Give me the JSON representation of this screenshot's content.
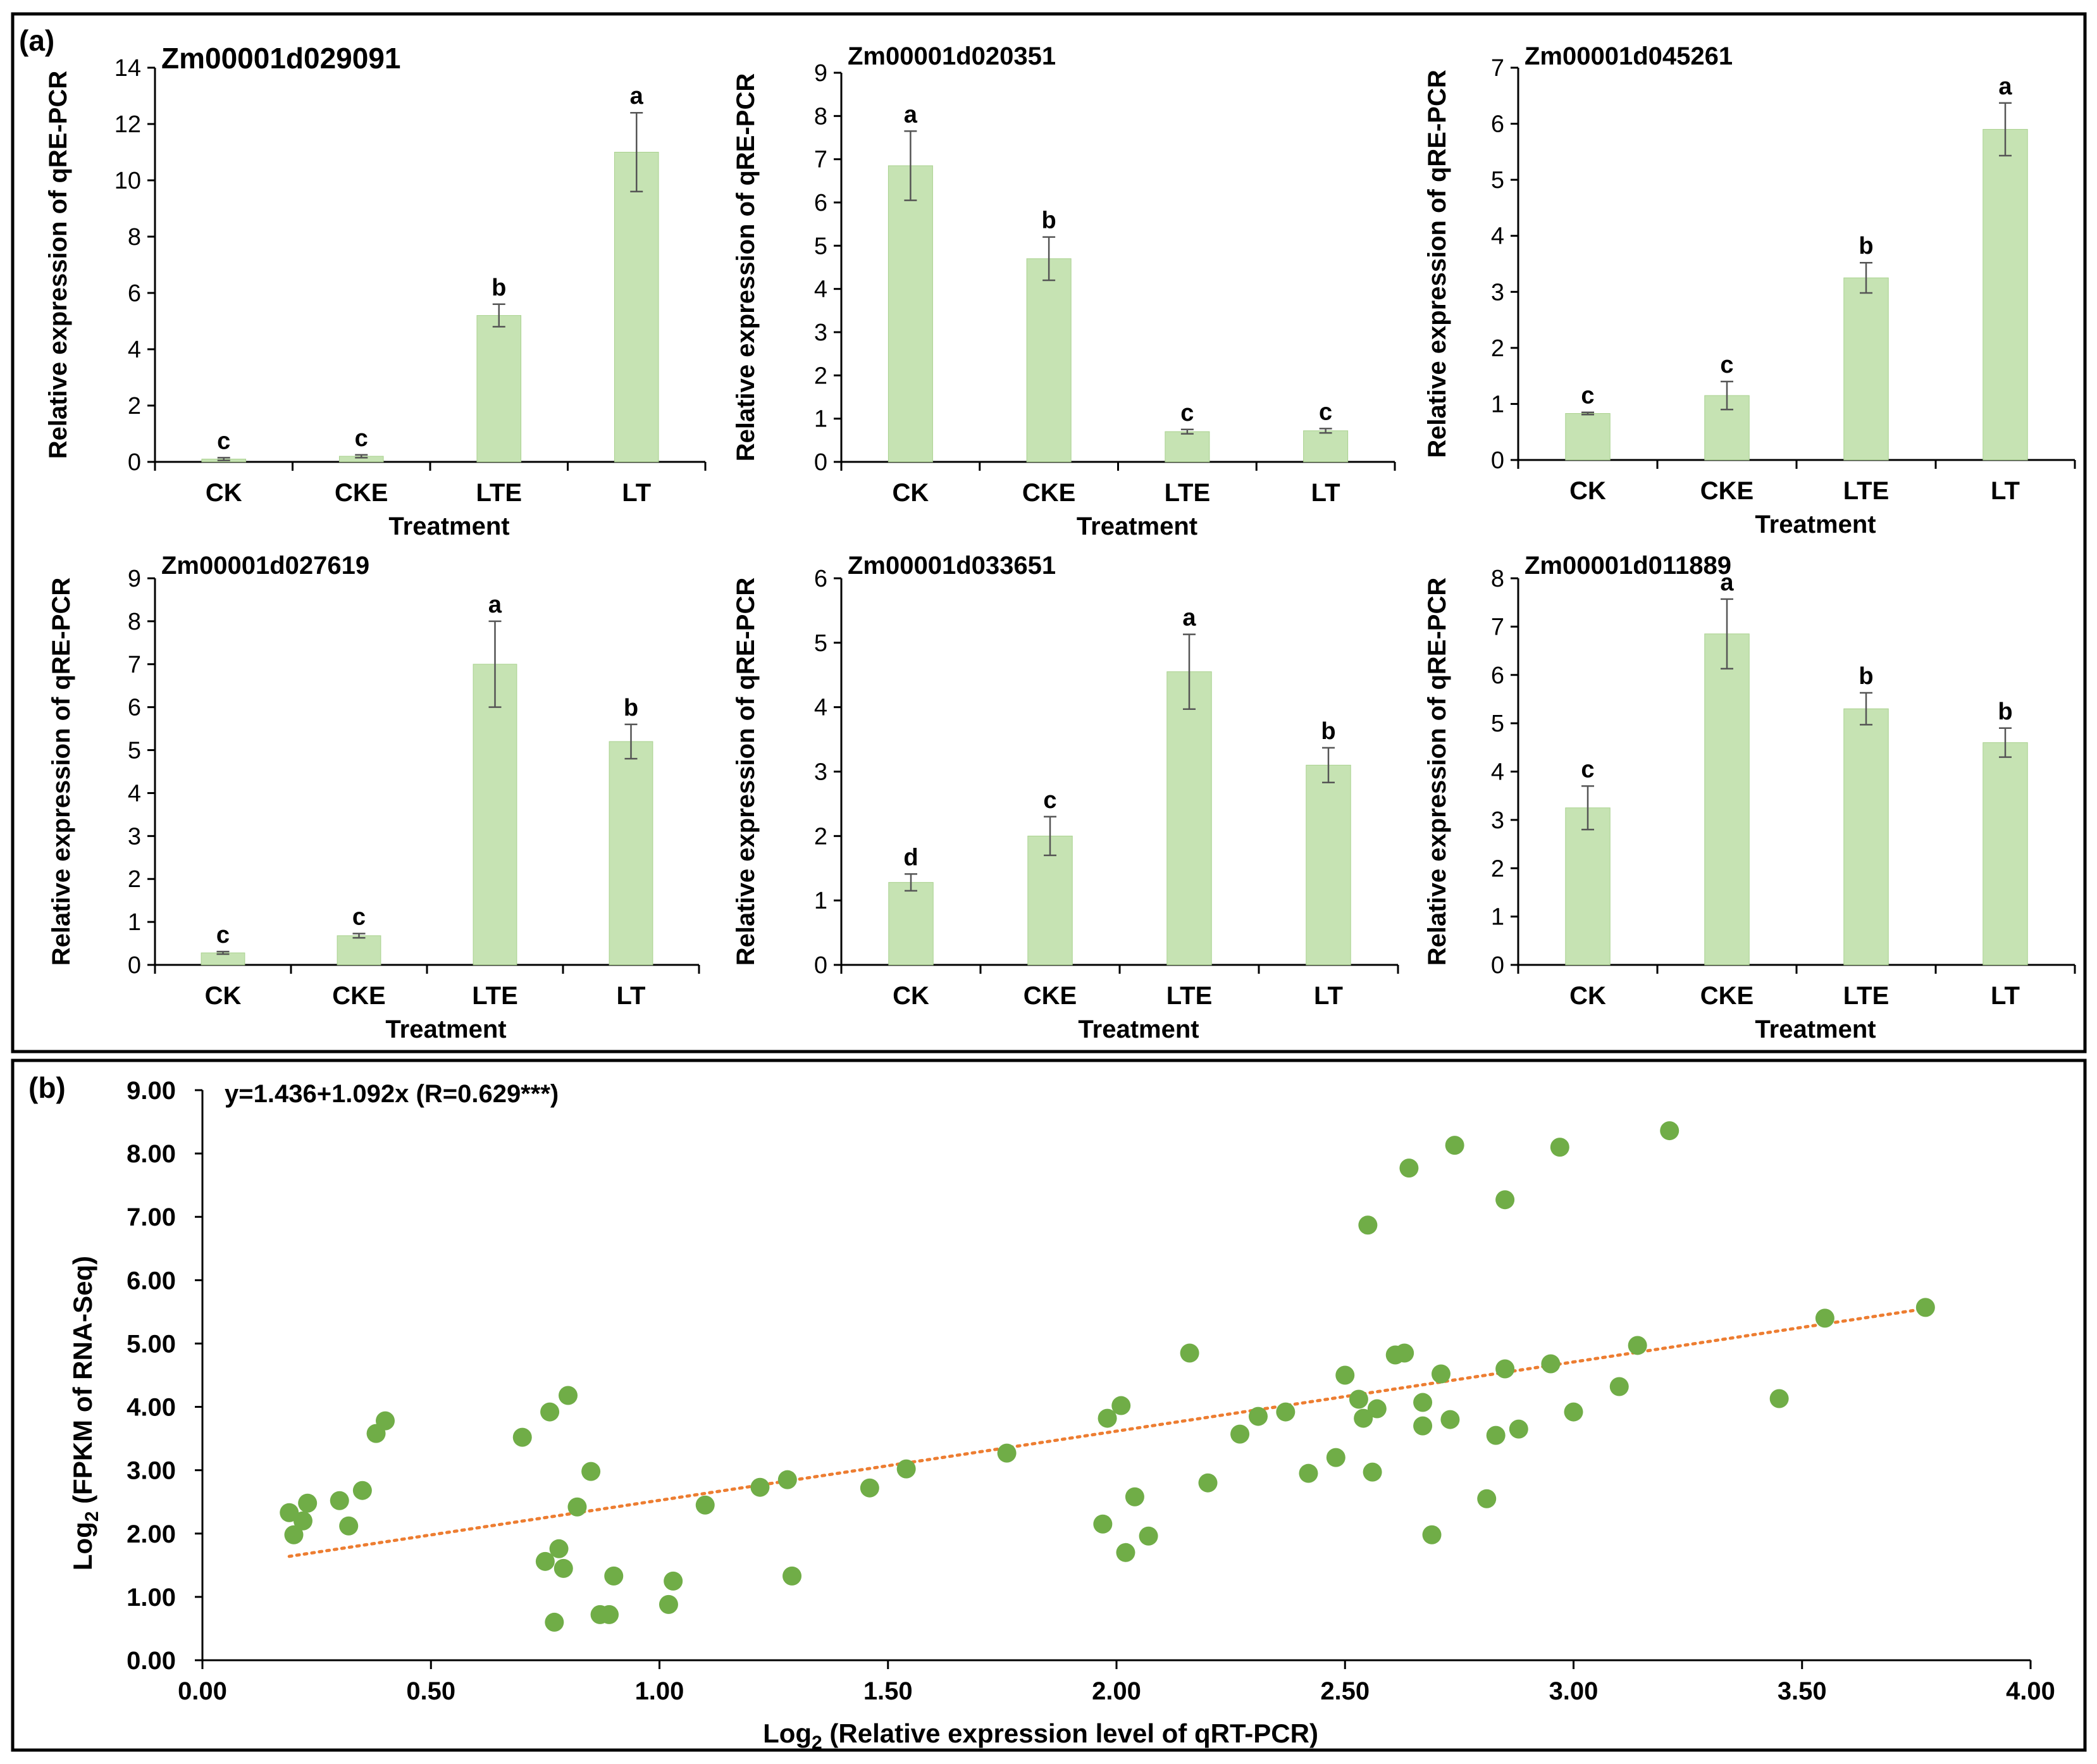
{
  "panel_labels": {
    "a": "(a)",
    "b": "(b)"
  },
  "colors": {
    "bar_fill": "#c6e3b3",
    "bar_edge": "#a9d18e",
    "point": "#70ad47",
    "trend": "#ed7d31",
    "axis": "#000000",
    "border": "#000000"
  },
  "bar_common": {
    "ylabel": "Relative expression of qRE-PCR",
    "xlabel": "Treatment",
    "categories": [
      "CK",
      "CKE",
      "LTE",
      "LT"
    ]
  },
  "chart_data": [
    {
      "type": "bar",
      "title": "Zm00001d029091",
      "categories": [
        "CK",
        "CKE",
        "LTE",
        "LT"
      ],
      "values": [
        0.1,
        0.2,
        5.2,
        11.0
      ],
      "errors": [
        0.05,
        0.05,
        0.4,
        1.4
      ],
      "letters": [
        "c",
        "c",
        "b",
        "a"
      ],
      "xlabel": "Treatment",
      "ylabel": "Relative expression of qRE-PCR",
      "ylim": [
        0,
        14
      ],
      "yticks": [
        0,
        2,
        4,
        6,
        8,
        10,
        12,
        14
      ]
    },
    {
      "type": "bar",
      "title": "Zm00001d020351",
      "categories": [
        "CK",
        "CKE",
        "LTE",
        "LT"
      ],
      "values": [
        6.85,
        4.7,
        0.7,
        0.72
      ],
      "errors": [
        0.8,
        0.5,
        0.05,
        0.05
      ],
      "letters": [
        "a",
        "b",
        "c",
        "c"
      ],
      "xlabel": "Treatment",
      "ylabel": "Relative expression of qRE-PCR",
      "ylim": [
        0,
        9
      ],
      "yticks": [
        0,
        1,
        2,
        3,
        4,
        5,
        6,
        7,
        8,
        9
      ]
    },
    {
      "type": "bar",
      "title": "Zm00001d045261",
      "categories": [
        "CK",
        "CKE",
        "LTE",
        "LT"
      ],
      "values": [
        0.83,
        1.15,
        3.25,
        5.9
      ],
      "errors": [
        0.02,
        0.25,
        0.27,
        0.47
      ],
      "letters": [
        "c",
        "c",
        "b",
        "a"
      ],
      "xlabel": "Treatment",
      "ylabel": "Relative expression of qRE-PCR",
      "ylim": [
        0,
        7
      ],
      "yticks": [
        0,
        1,
        2,
        3,
        4,
        5,
        6,
        7
      ]
    },
    {
      "type": "bar",
      "title": "Zm00001d027619",
      "categories": [
        "CK",
        "CKE",
        "LTE",
        "LT"
      ],
      "values": [
        0.28,
        0.68,
        7.0,
        5.2
      ],
      "errors": [
        0.03,
        0.05,
        1.0,
        0.4
      ],
      "letters": [
        "c",
        "c",
        "a",
        "b"
      ],
      "xlabel": "Treatment",
      "ylabel": "Relative expression of qRE-PCR",
      "ylim": [
        0,
        9
      ],
      "yticks": [
        0,
        1,
        2,
        3,
        4,
        5,
        6,
        7,
        8,
        9
      ]
    },
    {
      "type": "bar",
      "title": "Zm00001d033651",
      "categories": [
        "CK",
        "CKE",
        "LTE",
        "LT"
      ],
      "values": [
        1.28,
        2.0,
        4.55,
        3.1
      ],
      "errors": [
        0.13,
        0.3,
        0.58,
        0.27
      ],
      "letters": [
        "d",
        "c",
        "a",
        "b"
      ],
      "xlabel": "Treatment",
      "ylabel": "Relative expression of qRE-PCR",
      "ylim": [
        0,
        6
      ],
      "yticks": [
        0,
        1,
        2,
        3,
        4,
        5,
        6
      ]
    },
    {
      "type": "bar",
      "title": "Zm00001d011889",
      "categories": [
        "CK",
        "CKE",
        "LTE",
        "LT"
      ],
      "values": [
        3.25,
        6.85,
        5.3,
        4.6
      ],
      "errors": [
        0.45,
        0.72,
        0.33,
        0.3
      ],
      "letters": [
        "c",
        "a",
        "b",
        "b"
      ],
      "xlabel": "Treatment",
      "ylabel": "Relative expression of qRE-PCR",
      "ylim": [
        0,
        8
      ],
      "yticks": [
        0,
        1,
        2,
        3,
        4,
        5,
        6,
        7,
        8
      ]
    },
    {
      "type": "scatter",
      "annotation": "y=1.436+1.092x (R=0.629***)",
      "xlabel_prefix": "Log",
      "xlabel_sub": "2",
      "xlabel_rest": " (Relative expression level of qRT-PCR)",
      "ylabel_prefix": "Log",
      "ylabel_sub": "2",
      "ylabel_rest": " (FPKM of RNA-Seq)",
      "xlim": [
        0,
        4
      ],
      "ylim": [
        0,
        9
      ],
      "xticks": [
        "0.00",
        "0.50",
        "1.00",
        "1.50",
        "2.00",
        "2.50",
        "3.00",
        "3.50",
        "4.00"
      ],
      "yticks": [
        "0.00",
        "1.00",
        "2.00",
        "3.00",
        "4.00",
        "5.00",
        "6.00",
        "7.00",
        "8.00",
        "9.00"
      ],
      "trendline": {
        "x": [
          0.19,
          3.77
        ],
        "y": [
          1.64,
          5.55
        ]
      },
      "points": [
        [
          0.19,
          2.33
        ],
        [
          0.2,
          1.98
        ],
        [
          0.22,
          2.2
        ],
        [
          0.23,
          2.48
        ],
        [
          0.3,
          2.52
        ],
        [
          0.32,
          2.12
        ],
        [
          0.35,
          2.68
        ],
        [
          0.38,
          3.58
        ],
        [
          0.4,
          3.78
        ],
        [
          0.7,
          3.52
        ],
        [
          0.75,
          1.56
        ],
        [
          0.76,
          3.92
        ],
        [
          0.77,
          0.6
        ],
        [
          0.78,
          1.76
        ],
        [
          0.79,
          1.45
        ],
        [
          0.8,
          4.18
        ],
        [
          0.82,
          2.42
        ],
        [
          0.85,
          2.98
        ],
        [
          0.87,
          0.72
        ],
        [
          0.89,
          0.72
        ],
        [
          0.9,
          1.33
        ],
        [
          1.02,
          0.88
        ],
        [
          1.03,
          1.25
        ],
        [
          1.1,
          2.45
        ],
        [
          1.22,
          2.73
        ],
        [
          1.28,
          2.85
        ],
        [
          1.29,
          1.33
        ],
        [
          1.46,
          2.72
        ],
        [
          1.54,
          3.02
        ],
        [
          1.76,
          3.27
        ],
        [
          1.97,
          2.15
        ],
        [
          1.98,
          3.82
        ],
        [
          2.01,
          4.02
        ],
        [
          2.02,
          1.7
        ],
        [
          2.04,
          2.58
        ],
        [
          2.07,
          1.96
        ],
        [
          2.16,
          4.85
        ],
        [
          2.2,
          2.8
        ],
        [
          2.27,
          3.57
        ],
        [
          2.31,
          3.85
        ],
        [
          2.37,
          3.92
        ],
        [
          2.42,
          2.95
        ],
        [
          2.48,
          3.2
        ],
        [
          2.5,
          4.5
        ],
        [
          2.53,
          4.12
        ],
        [
          2.54,
          3.82
        ],
        [
          2.55,
          6.87
        ],
        [
          2.56,
          2.97
        ],
        [
          2.57,
          3.97
        ],
        [
          2.61,
          4.82
        ],
        [
          2.63,
          4.85
        ],
        [
          2.64,
          7.77
        ],
        [
          2.67,
          3.7
        ],
        [
          2.67,
          4.07
        ],
        [
          2.69,
          1.98
        ],
        [
          2.71,
          4.52
        ],
        [
          2.73,
          3.8
        ],
        [
          2.74,
          8.13
        ],
        [
          2.81,
          2.55
        ],
        [
          2.83,
          3.55
        ],
        [
          2.85,
          7.27
        ],
        [
          2.85,
          4.6
        ],
        [
          2.88,
          3.65
        ],
        [
          2.95,
          4.68
        ],
        [
          2.97,
          8.1
        ],
        [
          3.0,
          3.92
        ],
        [
          3.1,
          4.32
        ],
        [
          3.14,
          4.97
        ],
        [
          3.21,
          8.36
        ],
        [
          3.45,
          4.13
        ],
        [
          3.55,
          5.4
        ],
        [
          3.77,
          5.57
        ]
      ]
    }
  ]
}
